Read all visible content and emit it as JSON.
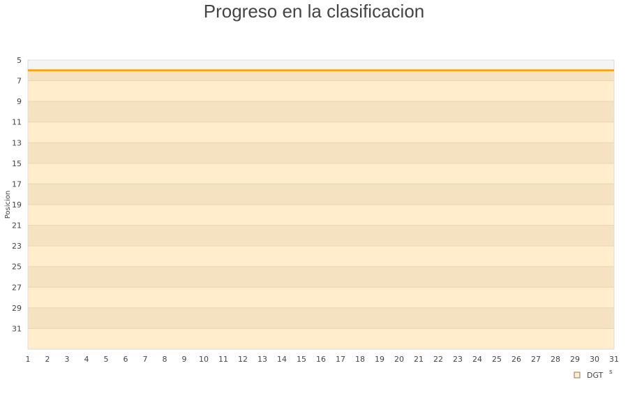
{
  "chart_data": {
    "type": "line",
    "title": "Progreso en la clasificacion",
    "xlabel": "",
    "ylabel": "Posicion",
    "x": [
      1,
      2,
      3,
      4,
      5,
      6,
      7,
      8,
      9,
      10,
      11,
      12,
      13,
      14,
      15,
      16,
      17,
      18,
      19,
      20,
      21,
      22,
      23,
      24,
      25,
      26,
      27,
      28,
      29,
      30,
      31
    ],
    "xlim": [
      1,
      31
    ],
    "ylim": [
      33,
      5
    ],
    "y_reversed": true,
    "y_ticks": [
      5,
      7,
      9,
      11,
      13,
      15,
      17,
      19,
      21,
      23,
      25,
      27,
      29,
      31
    ],
    "grid": true,
    "legend_position": "bottom-right",
    "series": [
      {
        "name": "DGT",
        "color": "#FFA500",
        "values": [
          6,
          6,
          6,
          6,
          6,
          6,
          6,
          6,
          6,
          6,
          6,
          6,
          6,
          6,
          6,
          6,
          6,
          6,
          6,
          6,
          6,
          6,
          6,
          6,
          6,
          6,
          6,
          6,
          6,
          6,
          6
        ]
      }
    ],
    "legend_extra": "s",
    "colors": {
      "band_dark": "#F5E2C1",
      "band_light": "#FFEDCC",
      "top_area": "#F4F4F4",
      "line": "#FFA500"
    }
  }
}
